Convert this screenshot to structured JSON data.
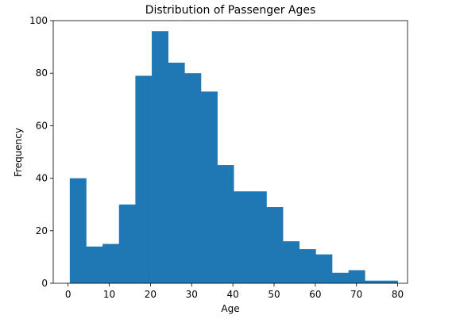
{
  "chart_data": {
    "type": "bar",
    "title": "Distribution of Passenger Ages",
    "xlabel": "Age",
    "ylabel": "Frequency",
    "xlim": [
      -3.6,
      82.4
    ],
    "ylim": [
      0,
      100
    ],
    "x_ticks": [
      0,
      10,
      20,
      30,
      40,
      50,
      60,
      70,
      80
    ],
    "y_ticks": [
      0,
      20,
      40,
      60,
      80,
      100
    ],
    "bin_edges": [
      0.42,
      4.4,
      8.38,
      12.36,
      16.34,
      20.32,
      24.3,
      28.28,
      32.26,
      36.24,
      40.21,
      44.19,
      48.17,
      52.15,
      56.13,
      60.11,
      64.09,
      68.07,
      72.05,
      76.03,
      80.0
    ],
    "values": [
      40,
      14,
      15,
      30,
      79,
      96,
      84,
      80,
      73,
      45,
      35,
      35,
      29,
      16,
      13,
      11,
      4,
      5,
      1,
      1
    ],
    "bar_color": "#1f77b4",
    "grid": false,
    "legend": "none"
  }
}
